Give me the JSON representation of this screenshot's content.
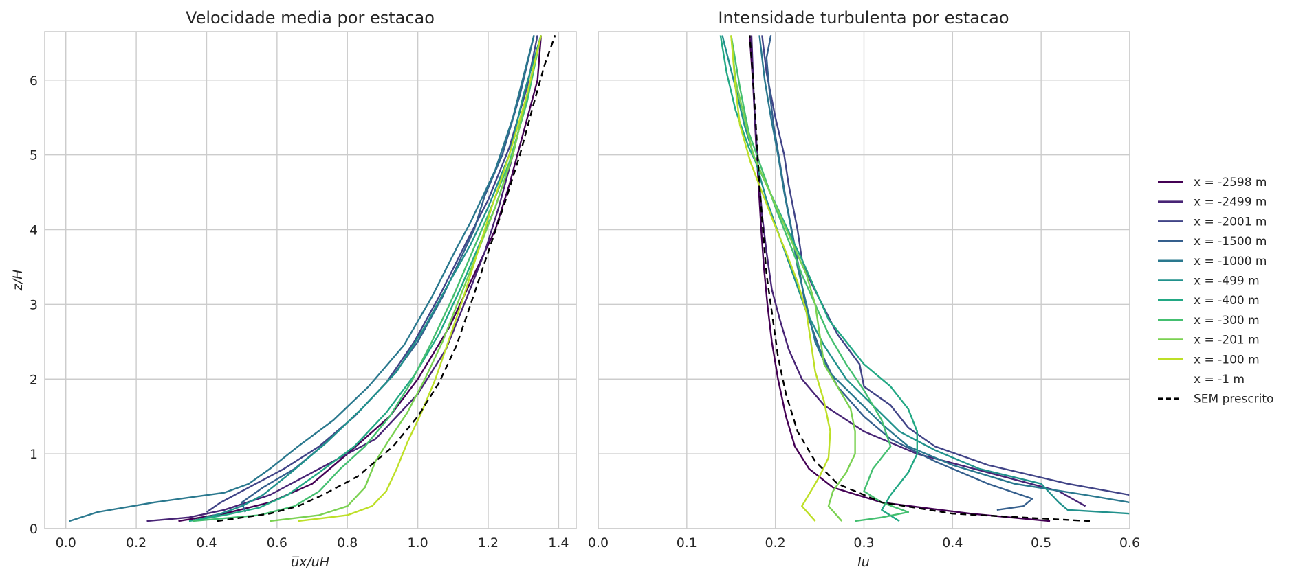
{
  "colors": {
    "grid": "#cccccc",
    "frame": "#cccccc",
    "reference": "#000000",
    "series": [
      "#440154",
      "#482475",
      "#414487",
      "#355f8d",
      "#2a788e",
      "#21918c",
      "#22a884",
      "#44bf70",
      "#7ad151",
      "#bddf26"
    ]
  },
  "chart_data": [
    {
      "type": "line",
      "title": "Velocidade media por estacao",
      "xlabel": "u̅x/uH",
      "ylabel": "z/H",
      "xlim": [
        -0.06,
        1.45
      ],
      "ylim": [
        0,
        6.65
      ],
      "xticks": [
        0.0,
        0.2,
        0.4,
        0.6,
        0.8,
        1.0,
        1.2,
        1.4
      ],
      "xtick_labels": [
        "0.0",
        "0.2",
        "0.4",
        "0.6",
        "0.8",
        "1.0",
        "1.2",
        "1.4"
      ],
      "yticks": [
        0,
        1,
        2,
        3,
        4,
        5,
        6
      ],
      "ytick_labels": [
        "0",
        "1",
        "2",
        "3",
        "4",
        "5",
        "6"
      ],
      "grid": true,
      "series": [
        {
          "name": "x = -2598 m",
          "x": [
            0.32,
            0.45,
            0.58,
            0.7,
            0.8,
            0.92,
            1.0,
            1.09,
            1.16,
            1.22,
            1.26,
            1.3,
            1.34,
            1.35
          ],
          "y": [
            0.1,
            0.2,
            0.35,
            0.6,
            1.0,
            1.5,
            2.0,
            2.7,
            3.4,
            4.0,
            4.6,
            5.3,
            6.0,
            6.6
          ]
        },
        {
          "name": "x = -2499 m",
          "x": [
            0.23,
            0.35,
            0.45,
            0.58,
            0.7,
            0.88,
            1.0,
            1.08,
            1.14,
            1.19,
            1.23,
            1.27,
            1.31,
            1.35
          ],
          "y": [
            0.1,
            0.15,
            0.25,
            0.45,
            0.75,
            1.2,
            1.8,
            2.4,
            3.1,
            3.7,
            4.3,
            5.0,
            5.8,
            6.6
          ]
        },
        {
          "name": "x = -2001 m",
          "x": [
            0.4,
            0.44,
            0.52,
            0.62,
            0.72,
            0.82,
            0.91,
            0.99,
            1.06,
            1.14,
            1.2,
            1.26,
            1.31,
            1.34
          ],
          "y": [
            0.22,
            0.35,
            0.55,
            0.8,
            1.1,
            1.5,
            1.95,
            2.5,
            3.1,
            3.85,
            4.4,
            5.1,
            5.9,
            6.6
          ]
        },
        {
          "name": "x = -1500 m",
          "x": [
            0.51,
            0.5,
            0.56,
            0.65,
            0.74,
            0.84,
            0.93,
            1.0,
            1.07,
            1.13,
            1.16,
            1.19,
            1.24,
            1.29,
            1.33
          ],
          "y": [
            0.22,
            0.35,
            0.55,
            0.8,
            1.15,
            1.6,
            2.05,
            2.5,
            3.1,
            3.7,
            4.0,
            4.45,
            5.0,
            5.8,
            6.6
          ]
        },
        {
          "name": "x = -1000 m",
          "x": [
            0.01,
            0.09,
            0.25,
            0.45,
            0.52,
            0.58,
            0.66,
            0.76,
            0.86,
            0.96,
            1.04,
            1.11,
            1.15,
            1.22,
            1.27,
            1.33
          ],
          "y": [
            0.1,
            0.22,
            0.35,
            0.48,
            0.6,
            0.8,
            1.1,
            1.45,
            1.9,
            2.45,
            3.1,
            3.75,
            4.1,
            4.8,
            5.5,
            6.6
          ]
        },
        {
          "name": "x = -499 m",
          "x": [
            0.36,
            0.44,
            0.5,
            0.56,
            0.64,
            0.74,
            0.84,
            0.94,
            1.02,
            1.09,
            1.15,
            1.2,
            1.26,
            1.3,
            1.35
          ],
          "y": [
            0.1,
            0.2,
            0.3,
            0.45,
            0.75,
            1.15,
            1.6,
            2.1,
            2.7,
            3.3,
            3.8,
            4.3,
            5.0,
            5.8,
            6.6
          ]
        },
        {
          "name": "x = -400 m",
          "x": [
            0.35,
            0.45,
            0.55,
            0.63,
            0.72,
            0.82,
            0.91,
            0.99,
            1.06,
            1.12,
            1.17,
            1.22,
            1.27,
            1.31,
            1.35
          ],
          "y": [
            0.1,
            0.18,
            0.28,
            0.45,
            0.75,
            1.1,
            1.55,
            2.05,
            2.6,
            3.2,
            3.75,
            4.3,
            5.0,
            5.8,
            6.6
          ]
        },
        {
          "name": "x = -300 m",
          "x": [
            0.36,
            0.55,
            0.65,
            0.72,
            0.78,
            0.85,
            0.92,
            0.98,
            1.04,
            1.1,
            1.15,
            1.2,
            1.26,
            1.31,
            1.35
          ],
          "y": [
            0.1,
            0.18,
            0.3,
            0.5,
            0.8,
            1.1,
            1.5,
            1.95,
            2.5,
            3.1,
            3.65,
            4.2,
            4.9,
            5.7,
            6.6
          ]
        },
        {
          "name": "x = -201 m",
          "x": [
            0.58,
            0.72,
            0.8,
            0.85,
            0.88,
            0.92,
            0.97,
            1.02,
            1.07,
            1.12,
            1.17,
            1.22,
            1.27,
            1.31,
            1.35
          ],
          "y": [
            0.1,
            0.18,
            0.3,
            0.55,
            0.9,
            1.2,
            1.55,
            2.0,
            2.5,
            3.1,
            3.7,
            4.3,
            5.0,
            5.8,
            6.6
          ]
        },
        {
          "name": "x = -100 m",
          "x": [
            0.66,
            0.8,
            0.87,
            0.91,
            0.94,
            0.97,
            1.01,
            1.05,
            1.09,
            1.13,
            1.17,
            1.21,
            1.26,
            1.31,
            1.35
          ],
          "y": [
            0.1,
            0.18,
            0.3,
            0.5,
            0.8,
            1.15,
            1.55,
            2.0,
            2.55,
            3.1,
            3.7,
            4.3,
            5.0,
            5.8,
            6.6
          ]
        },
        {
          "name": "x = -1 m",
          "x": [
            0.67,
            0.81,
            0.88,
            0.93,
            0.97,
            1.0,
            1.03,
            1.06,
            1.09,
            1.12,
            1.16,
            1.2,
            1.25,
            1.3,
            1.36
          ],
          "y": [
            0.1,
            0.16,
            0.25,
            0.45,
            0.75,
            1.05,
            1.4,
            1.85,
            2.4,
            3.0,
            3.6,
            4.2,
            4.9,
            5.7,
            6.6
          ]
        },
        {
          "name": "SEM prescrito",
          "dashed": true,
          "x": [
            0.43,
            0.58,
            0.66,
            0.73,
            0.83,
            0.93,
            1.0,
            1.06,
            1.11,
            1.15,
            1.2,
            1.25,
            1.29,
            1.33,
            1.36,
            1.39
          ],
          "y": [
            0.1,
            0.2,
            0.3,
            0.45,
            0.7,
            1.1,
            1.5,
            1.95,
            2.45,
            3.0,
            3.7,
            4.4,
            5.0,
            5.7,
            6.2,
            6.6
          ]
        }
      ]
    },
    {
      "type": "line",
      "title": "Intensidade turbulenta por estacao",
      "xlabel": "Iu",
      "ylabel": "",
      "xlim": [
        0.0,
        0.6
      ],
      "ylim": [
        0,
        6.65
      ],
      "xticks": [
        0.0,
        0.1,
        0.2,
        0.3,
        0.4,
        0.5,
        0.6
      ],
      "xtick_labels": [
        "0.0",
        "0.1",
        "0.2",
        "0.3",
        "0.4",
        "0.5",
        "0.6"
      ],
      "yticks": [
        0,
        1,
        2,
        3,
        4,
        5,
        6
      ],
      "grid": true,
      "series": [
        {
          "name": "x = -2598 m",
          "x": [
            0.51,
            0.42,
            0.32,
            0.265,
            0.238,
            0.222,
            0.212,
            0.203,
            0.196,
            0.191,
            0.187,
            0.184,
            0.181,
            0.178,
            0.175,
            0.171
          ],
          "y": [
            0.1,
            0.2,
            0.35,
            0.55,
            0.8,
            1.1,
            1.5,
            2.0,
            2.5,
            3.0,
            3.5,
            4.0,
            4.6,
            5.2,
            5.9,
            6.6
          ]
        },
        {
          "name": "x = -2499 m",
          "x": [
            0.55,
            0.52,
            0.44,
            0.36,
            0.3,
            0.255,
            0.23,
            0.215,
            0.205,
            0.196,
            0.19,
            0.185,
            0.18,
            0.176,
            0.173
          ],
          "y": [
            0.3,
            0.5,
            0.75,
            1.0,
            1.3,
            1.65,
            2.0,
            2.4,
            2.8,
            3.2,
            3.7,
            4.2,
            4.9,
            5.7,
            6.6
          ]
        },
        {
          "name": "x = -2001 m",
          "x": [
            0.6,
            0.53,
            0.44,
            0.38,
            0.35,
            0.33,
            0.3,
            0.295,
            0.27,
            0.255,
            0.24,
            0.23,
            0.225,
            0.215,
            0.21,
            0.2,
            0.19,
            0.185
          ],
          "y": [
            0.45,
            0.6,
            0.85,
            1.1,
            1.35,
            1.65,
            1.9,
            2.2,
            2.6,
            2.95,
            3.3,
            3.6,
            4.0,
            4.6,
            5.0,
            5.5,
            6.1,
            6.6
          ]
        },
        {
          "name": "x = -1500 m",
          "x": [
            0.45,
            0.48,
            0.49,
            0.44,
            0.38,
            0.33,
            0.3,
            0.27,
            0.25,
            0.235,
            0.228,
            0.22,
            0.212,
            0.205,
            0.198,
            0.193,
            0.19,
            0.195
          ],
          "y": [
            0.25,
            0.3,
            0.4,
            0.6,
            0.9,
            1.2,
            1.5,
            1.9,
            2.4,
            2.9,
            3.4,
            3.9,
            4.4,
            4.9,
            5.4,
            5.9,
            6.3,
            6.6
          ]
        },
        {
          "name": "x = -1000 m",
          "x": [
            0.6,
            0.55,
            0.47,
            0.4,
            0.35,
            0.32,
            0.29,
            0.26,
            0.245,
            0.235,
            0.225,
            0.218,
            0.21,
            0.203,
            0.195,
            0.188,
            0.182
          ],
          "y": [
            0.35,
            0.45,
            0.6,
            0.85,
            1.1,
            1.4,
            1.75,
            2.1,
            2.5,
            3.0,
            3.5,
            4.0,
            4.5,
            5.0,
            5.5,
            6.0,
            6.6
          ]
        },
        {
          "name": "x = -499 m",
          "x": [
            0.6,
            0.53,
            0.52,
            0.5,
            0.43,
            0.38,
            0.34,
            0.31,
            0.28,
            0.255,
            0.235,
            0.22,
            0.205,
            0.19,
            0.178,
            0.165,
            0.155,
            0.14
          ],
          "y": [
            0.2,
            0.25,
            0.35,
            0.6,
            0.8,
            1.05,
            1.3,
            1.65,
            2.0,
            2.45,
            2.9,
            3.4,
            3.9,
            4.4,
            4.9,
            5.4,
            5.9,
            6.6
          ]
        },
        {
          "name": "x = -400 m",
          "x": [
            0.34,
            0.32,
            0.33,
            0.35,
            0.36,
            0.36,
            0.35,
            0.33,
            0.3,
            0.28,
            0.26,
            0.245,
            0.23,
            0.21,
            0.19,
            0.17,
            0.155,
            0.145,
            0.138
          ],
          "y": [
            0.1,
            0.25,
            0.45,
            0.75,
            1.0,
            1.3,
            1.6,
            1.9,
            2.2,
            2.5,
            2.8,
            3.2,
            3.6,
            4.1,
            4.6,
            5.1,
            5.6,
            6.1,
            6.6
          ]
        },
        {
          "name": "x = -300 m",
          "x": [
            0.29,
            0.32,
            0.35,
            0.32,
            0.3,
            0.31,
            0.33,
            0.32,
            0.3,
            0.28,
            0.26,
            0.245,
            0.23,
            0.215,
            0.2,
            0.185,
            0.17,
            0.16,
            0.15
          ],
          "y": [
            0.1,
            0.15,
            0.22,
            0.35,
            0.5,
            0.8,
            1.1,
            1.45,
            1.85,
            2.2,
            2.6,
            3.0,
            3.4,
            3.85,
            4.3,
            4.8,
            5.3,
            5.9,
            6.6
          ]
        },
        {
          "name": "x = -201 m",
          "x": [
            0.275,
            0.26,
            0.265,
            0.28,
            0.29,
            0.29,
            0.285,
            0.27,
            0.255,
            0.25,
            0.245,
            0.235,
            0.22,
            0.205,
            0.19,
            0.175,
            0.165,
            0.155,
            0.15
          ],
          "y": [
            0.1,
            0.3,
            0.5,
            0.75,
            1.0,
            1.3,
            1.6,
            1.9,
            2.2,
            2.6,
            3.0,
            3.4,
            3.8,
            4.2,
            4.6,
            5.0,
            5.5,
            6.0,
            6.6
          ]
        },
        {
          "name": "x = -100 m",
          "x": [
            0.245,
            0.23,
            0.24,
            0.25,
            0.26,
            0.262,
            0.255,
            0.245,
            0.24,
            0.235,
            0.225,
            0.212,
            0.198,
            0.185,
            0.172,
            0.16,
            0.155,
            0.15
          ],
          "y": [
            0.1,
            0.3,
            0.5,
            0.7,
            0.95,
            1.3,
            1.7,
            2.1,
            2.5,
            2.9,
            3.3,
            3.7,
            4.1,
            4.5,
            4.9,
            5.4,
            5.9,
            6.6
          ]
        },
        {
          "name": "x = -1 m",
          "x": [
            0.22,
            0.218,
            0.22,
            0.225,
            0.232,
            0.232,
            0.225,
            0.218,
            0.215,
            0.212,
            0.205,
            0.195,
            0.185,
            0.175,
            0.165,
            0.158,
            0.155,
            0.155
          ],
          "y": [
            0.1,
            0.35,
            0.6,
            0.8,
            1.0,
            1.4,
            1.8,
            2.2,
            2.6,
            3.0,
            3.4,
            3.8,
            4.2,
            4.7,
            5.2,
            5.7,
            6.1,
            6.6
          ]
        },
        {
          "name": "SEM prescrito",
          "dashed": true,
          "x": [
            0.555,
            0.4,
            0.32,
            0.27,
            0.245,
            0.225,
            0.212,
            0.203,
            0.196,
            0.19,
            0.186,
            0.182,
            0.179,
            0.176,
            0.173,
            0.171
          ],
          "y": [
            0.1,
            0.2,
            0.35,
            0.6,
            0.9,
            1.3,
            1.8,
            2.3,
            2.9,
            3.4,
            4.0,
            4.6,
            5.2,
            5.8,
            6.3,
            6.6
          ]
        }
      ]
    }
  ],
  "legend": {
    "position": "center-right",
    "entries": [
      "x = -2598 m",
      "x = -2499 m",
      "x = -2001 m",
      "x = -1500 m",
      "x = -1000 m",
      "x = -499 m",
      "x = -400 m",
      "x = -300 m",
      "x = -201 m",
      "x = -100 m",
      "x = -1 m",
      "SEM prescrito"
    ]
  }
}
